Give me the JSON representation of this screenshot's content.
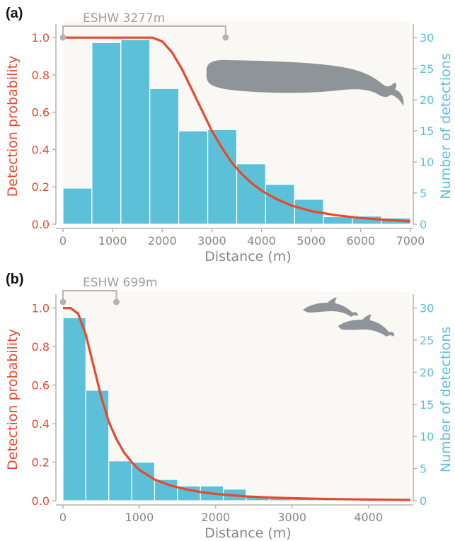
{
  "colors": {
    "curve": "#e64a2e",
    "bar": "#5bc0d8",
    "bar_edge": "#ffffff",
    "axis_left": "#e64a2e",
    "axis_right": "#5bc0d8",
    "axis_gray": "#b8b2ae",
    "plot_bg": "#faf8f5",
    "silhouette": "#8f9499"
  },
  "chart_data": [
    {
      "panel_label": "(a)",
      "type": "bar",
      "title": "",
      "xlabel": "Distance (m)",
      "ylabel_left": "Detection probability",
      "ylabel_right": "Number of detections",
      "xlim": [
        0,
        7000
      ],
      "ylim_left": [
        0,
        1.05
      ],
      "ylim_right": [
        0,
        31.5
      ],
      "xticks": [
        "0",
        "1000",
        "2000",
        "3000",
        "4000",
        "5000",
        "6000",
        "7000"
      ],
      "yticks_left": [
        "0.0",
        "0.2",
        "0.4",
        "0.6",
        "0.8",
        "1.0"
      ],
      "yticks_right": [
        "0",
        "5",
        "10",
        "15",
        "20",
        "25",
        "30"
      ],
      "bin_width": 583,
      "bin_starts": [
        0,
        583,
        1167,
        1750,
        2333,
        2917,
        3500,
        4083,
        4667,
        5250,
        5833,
        6417
      ],
      "counts": [
        5.8,
        29.2,
        29.7,
        21.8,
        15.0,
        15.2,
        9.7,
        6.4,
        4.0,
        1.2,
        1.3,
        1.0
      ],
      "series": [
        {
          "name": "",
          "type": "line",
          "x": [
            0,
            500,
            1000,
            1500,
            1800,
            2000,
            2200,
            2400,
            2600,
            2800,
            3000,
            3200,
            3400,
            3600,
            3800,
            4000,
            4300,
            4600,
            5000,
            5500,
            6000,
            6500,
            7000
          ],
          "y": [
            1.0,
            1.0,
            1.0,
            1.0,
            1.0,
            0.98,
            0.92,
            0.83,
            0.72,
            0.61,
            0.5,
            0.41,
            0.33,
            0.27,
            0.22,
            0.18,
            0.135,
            0.1,
            0.07,
            0.048,
            0.033,
            0.023,
            0.015
          ]
        }
      ],
      "eshw_label": "ESHW 3277m",
      "eshw_range": [
        0,
        3277
      ],
      "silhouette_icon": "sperm-whale-icon"
    },
    {
      "panel_label": "(b)",
      "type": "bar",
      "title": "",
      "xlabel": "Distance (m)",
      "ylabel_left": "Detection probability",
      "ylabel_right": "Number of detections",
      "xlim": [
        0,
        4550
      ],
      "ylim_left": [
        0,
        1.05
      ],
      "ylim_right": [
        0,
        31.5
      ],
      "xticks": [
        "0",
        "1000",
        "2000",
        "3000",
        "4000"
      ],
      "yticks_left": [
        "0.0",
        "0.2",
        "0.4",
        "0.6",
        "0.8",
        "1.0"
      ],
      "yticks_right": [
        "0",
        "5",
        "10",
        "15",
        "20",
        "25",
        "30"
      ],
      "bin_width": 300,
      "bin_starts": [
        0,
        300,
        600,
        900,
        1200,
        1500,
        1800,
        2100,
        2400,
        2700,
        3000,
        3300,
        3600,
        3900,
        4200
      ],
      "counts": [
        28.5,
        17.2,
        6.2,
        6.0,
        3.3,
        2.3,
        2.3,
        1.8,
        0.7,
        0.4,
        0.3,
        0.2,
        0.2,
        0.2,
        0.1
      ],
      "series": [
        {
          "name": "",
          "type": "line",
          "x": [
            0,
            100,
            200,
            300,
            400,
            500,
            600,
            700,
            800,
            900,
            1000,
            1200,
            1400,
            1600,
            1800,
            2000,
            2400,
            2800,
            3200,
            3600,
            4000,
            4550
          ],
          "y": [
            1.0,
            1.0,
            0.97,
            0.86,
            0.7,
            0.54,
            0.41,
            0.32,
            0.25,
            0.2,
            0.16,
            0.11,
            0.08,
            0.06,
            0.045,
            0.035,
            0.022,
            0.015,
            0.011,
            0.008,
            0.006,
            0.004
          ]
        }
      ],
      "eshw_label": "ESHW 699m",
      "eshw_range": [
        0,
        699
      ],
      "silhouette_icon": "dolphins-icon"
    }
  ]
}
